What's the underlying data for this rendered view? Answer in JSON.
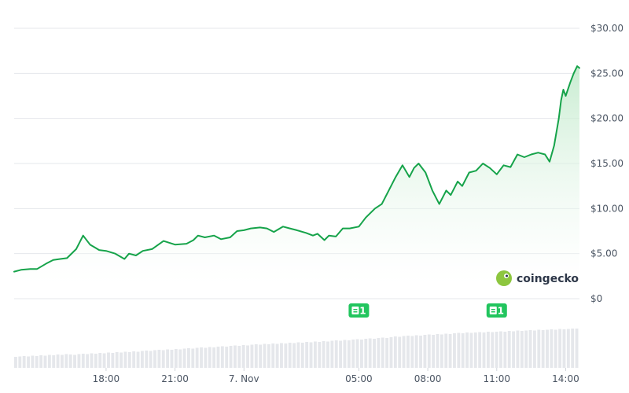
{
  "chart_data": {
    "type": "area",
    "title": "",
    "xlabel": "",
    "ylabel": "",
    "x_tick_labels": [
      "18:00",
      "21:00",
      "7. Nov",
      "05:00",
      "08:00",
      "11:00",
      "14:00"
    ],
    "x_tick_hours": [
      18,
      21,
      24,
      29,
      32,
      35,
      38
    ],
    "y_tick_labels": [
      "$0",
      "$5.00",
      "$10.00",
      "$15.00",
      "$20.00",
      "$25.00",
      "$30.00"
    ],
    "y_tick_values": [
      0,
      5,
      10,
      15,
      20,
      25,
      30
    ],
    "ylim": [
      0,
      30
    ],
    "grid": true,
    "accent_color": "#16a34a",
    "fill_color": "#bfe9c9",
    "volume_color": "#e5e7eb",
    "series": [
      {
        "x_hours": [
          14.0,
          14.3,
          14.7,
          15.0,
          15.4,
          15.7,
          16.0,
          16.3,
          16.7,
          17.0,
          17.3,
          17.5,
          17.7,
          18.0,
          18.4,
          18.8,
          19.0,
          19.3,
          19.6,
          20.0,
          20.5,
          21.0,
          21.5,
          21.8,
          22.0,
          22.3,
          22.7,
          23.0,
          23.4,
          23.7,
          24.0,
          24.3,
          24.7,
          25.0,
          25.3,
          25.7,
          26.0,
          26.3,
          26.7,
          27.0,
          27.2,
          27.5,
          27.7,
          28.0,
          28.3,
          28.6,
          29.0,
          29.3,
          29.7,
          30.0,
          30.3,
          30.6,
          30.9,
          31.2,
          31.4,
          31.6,
          31.9,
          32.2,
          32.5,
          32.8,
          33.0,
          33.3,
          33.5,
          33.8,
          34.1,
          34.4,
          34.7,
          35.0,
          35.3,
          35.6,
          35.9,
          36.2,
          36.5,
          36.8,
          37.1,
          37.3,
          37.5,
          37.7,
          37.8,
          37.9,
          38.0,
          38.2,
          38.35,
          38.5,
          38.6
        ],
        "values": [
          3.0,
          3.2,
          3.3,
          3.3,
          3.9,
          4.3,
          4.4,
          4.5,
          5.5,
          7.0,
          6.0,
          5.7,
          5.4,
          5.3,
          5.0,
          4.4,
          5.0,
          4.8,
          5.3,
          5.5,
          6.4,
          6.0,
          6.1,
          6.5,
          7.0,
          6.8,
          7.0,
          6.6,
          6.8,
          7.5,
          7.6,
          7.8,
          7.9,
          7.8,
          7.4,
          8.0,
          7.8,
          7.6,
          7.3,
          7.0,
          7.2,
          6.5,
          7.0,
          6.9,
          7.8,
          7.8,
          8.0,
          9.0,
          10.0,
          10.5,
          12.0,
          13.5,
          14.8,
          13.5,
          14.5,
          15.0,
          14.0,
          12.0,
          10.5,
          12.0,
          11.5,
          13.0,
          12.5,
          14.0,
          14.2,
          15.0,
          14.5,
          13.8,
          14.8,
          14.6,
          16.0,
          15.7,
          16.0,
          16.2,
          16.0,
          15.2,
          17.0,
          20.0,
          22.0,
          23.2,
          22.5,
          24.0,
          25.0,
          25.8,
          25.6
        ]
      }
    ],
    "volume": [
      0.28,
      0.29,
      0.3,
      0.29,
      0.31,
      0.3,
      0.32,
      0.31,
      0.33,
      0.32,
      0.34,
      0.33,
      0.35,
      0.34,
      0.33,
      0.35,
      0.36,
      0.35,
      0.37,
      0.36,
      0.38,
      0.37,
      0.39,
      0.38,
      0.4,
      0.39,
      0.41,
      0.4,
      0.42,
      0.41,
      0.43,
      0.44,
      0.43,
      0.45,
      0.46,
      0.45,
      0.47,
      0.46,
      0.48,
      0.47,
      0.49,
      0.5,
      0.49,
      0.51,
      0.52,
      0.51,
      0.53,
      0.52,
      0.54,
      0.55,
      0.54,
      0.56,
      0.57,
      0.56,
      0.58,
      0.57,
      0.59,
      0.6,
      0.59,
      0.61,
      0.6,
      0.62,
      0.61,
      0.63,
      0.62,
      0.64,
      0.63,
      0.65,
      0.64,
      0.66,
      0.65,
      0.67,
      0.66,
      0.68,
      0.67,
      0.69,
      0.7,
      0.69,
      0.71,
      0.7,
      0.72,
      0.73,
      0.72,
      0.74,
      0.75,
      0.74,
      0.76,
      0.77,
      0.76,
      0.78,
      0.8,
      0.79,
      0.81,
      0.82,
      0.81,
      0.83,
      0.82,
      0.84,
      0.85,
      0.84,
      0.86,
      0.85,
      0.87,
      0.86,
      0.88,
      0.89,
      0.88,
      0.9,
      0.89,
      0.9,
      0.91,
      0.9,
      0.92,
      0.91,
      0.92,
      0.93,
      0.92,
      0.94,
      0.93,
      0.95,
      0.94,
      0.95,
      0.96,
      0.95,
      0.97,
      0.96,
      0.97,
      0.98,
      0.97,
      0.99,
      0.98,
      0.99,
      1.0,
      1.0
    ]
  },
  "events": [
    {
      "hour": 29.0,
      "label": "1",
      "icon": "calendar-icon",
      "color": "#22c55e"
    },
    {
      "hour": 35.0,
      "label": "1",
      "icon": "calendar-icon",
      "color": "#22c55e"
    }
  ],
  "watermark": {
    "text": "coingecko",
    "icon": "gecko-logo-icon",
    "logo_color": "#8dc63f"
  }
}
